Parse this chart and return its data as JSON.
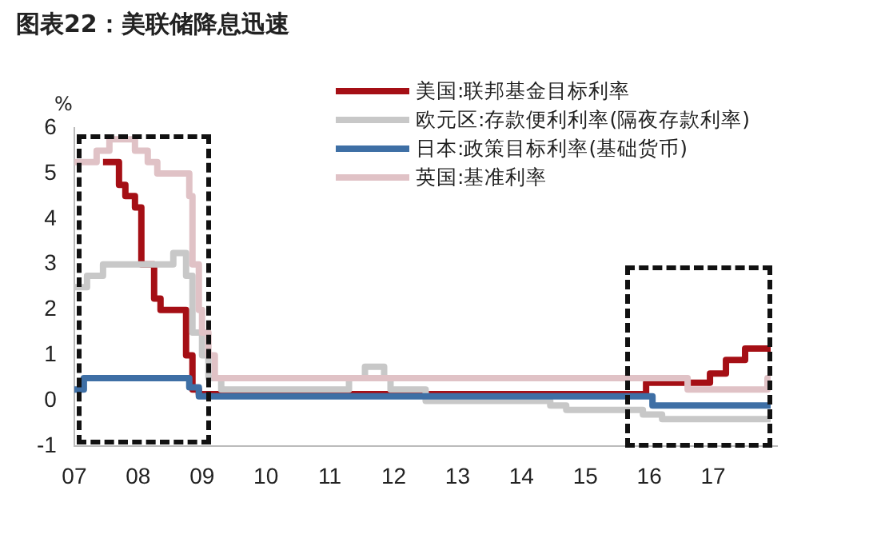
{
  "chart_data": {
    "type": "step",
    "title": "图表22：美联储降息迅速",
    "ylabel": "%",
    "legend": "top right",
    "grid": false,
    "xlim": [
      7,
      18
    ],
    "xticks": [
      {
        "value": 7,
        "label": "07"
      },
      {
        "value": 8,
        "label": "08"
      },
      {
        "value": 9,
        "label": "09"
      },
      {
        "value": 10,
        "label": "10"
      },
      {
        "value": 11,
        "label": "11"
      },
      {
        "value": 12,
        "label": "12"
      },
      {
        "value": 13,
        "label": "13"
      },
      {
        "value": 14,
        "label": "14"
      },
      {
        "value": 15,
        "label": "15"
      },
      {
        "value": 16,
        "label": "16"
      },
      {
        "value": 17,
        "label": "17"
      }
    ],
    "ylim": [
      -1,
      6
    ],
    "yticks": [
      -1,
      0,
      1,
      2,
      3,
      4,
      5,
      6
    ],
    "series": [
      {
        "name": "美国:联邦基金目标利率",
        "color": "#a50f15",
        "x": [
          7.45,
          7.7,
          7.8,
          7.95,
          8.05,
          8.25,
          8.35,
          8.75,
          8.85,
          8.95,
          15.95,
          16.95,
          17.2,
          17.5,
          17.9
        ],
        "values": [
          5.25,
          4.75,
          4.5,
          4.25,
          3.0,
          2.25,
          2.0,
          1.0,
          0.25,
          0.15,
          0.4,
          0.6,
          0.9,
          1.15,
          1.15
        ]
      },
      {
        "name": "欧元区:存款便利利率(隔夜存款利率)",
        "color": "#c8c8c8",
        "x": [
          7.0,
          7.2,
          7.45,
          8.55,
          8.75,
          8.85,
          9.0,
          9.1,
          9.3,
          11.3,
          11.55,
          11.85,
          11.95,
          12.5,
          14.45,
          14.7,
          15.9,
          16.2,
          17.9
        ],
        "values": [
          2.5,
          2.75,
          3.0,
          3.25,
          2.75,
          1.5,
          1.0,
          0.5,
          0.25,
          0.5,
          0.75,
          0.5,
          0.25,
          0.0,
          -0.1,
          -0.2,
          -0.3,
          -0.4,
          -0.4
        ]
      },
      {
        "name": "日本:政策目标利率(基础货币)",
        "color": "#3e6fa5",
        "x": [
          7.0,
          7.15,
          8.8,
          8.95,
          16.05,
          17.9
        ],
        "values": [
          0.25,
          0.5,
          0.3,
          0.1,
          -0.1,
          -0.1
        ]
      },
      {
        "name": "英国:基准利率",
        "color": "#e0c2c6",
        "x": [
          7.0,
          7.35,
          7.55,
          7.95,
          8.15,
          8.3,
          8.8,
          8.85,
          8.95,
          9.0,
          9.1,
          9.2,
          16.6,
          17.85,
          17.9
        ],
        "values": [
          5.25,
          5.5,
          5.75,
          5.5,
          5.25,
          5.0,
          4.5,
          3.0,
          2.0,
          1.5,
          1.0,
          0.5,
          0.25,
          0.5,
          0.5
        ]
      }
    ]
  }
}
